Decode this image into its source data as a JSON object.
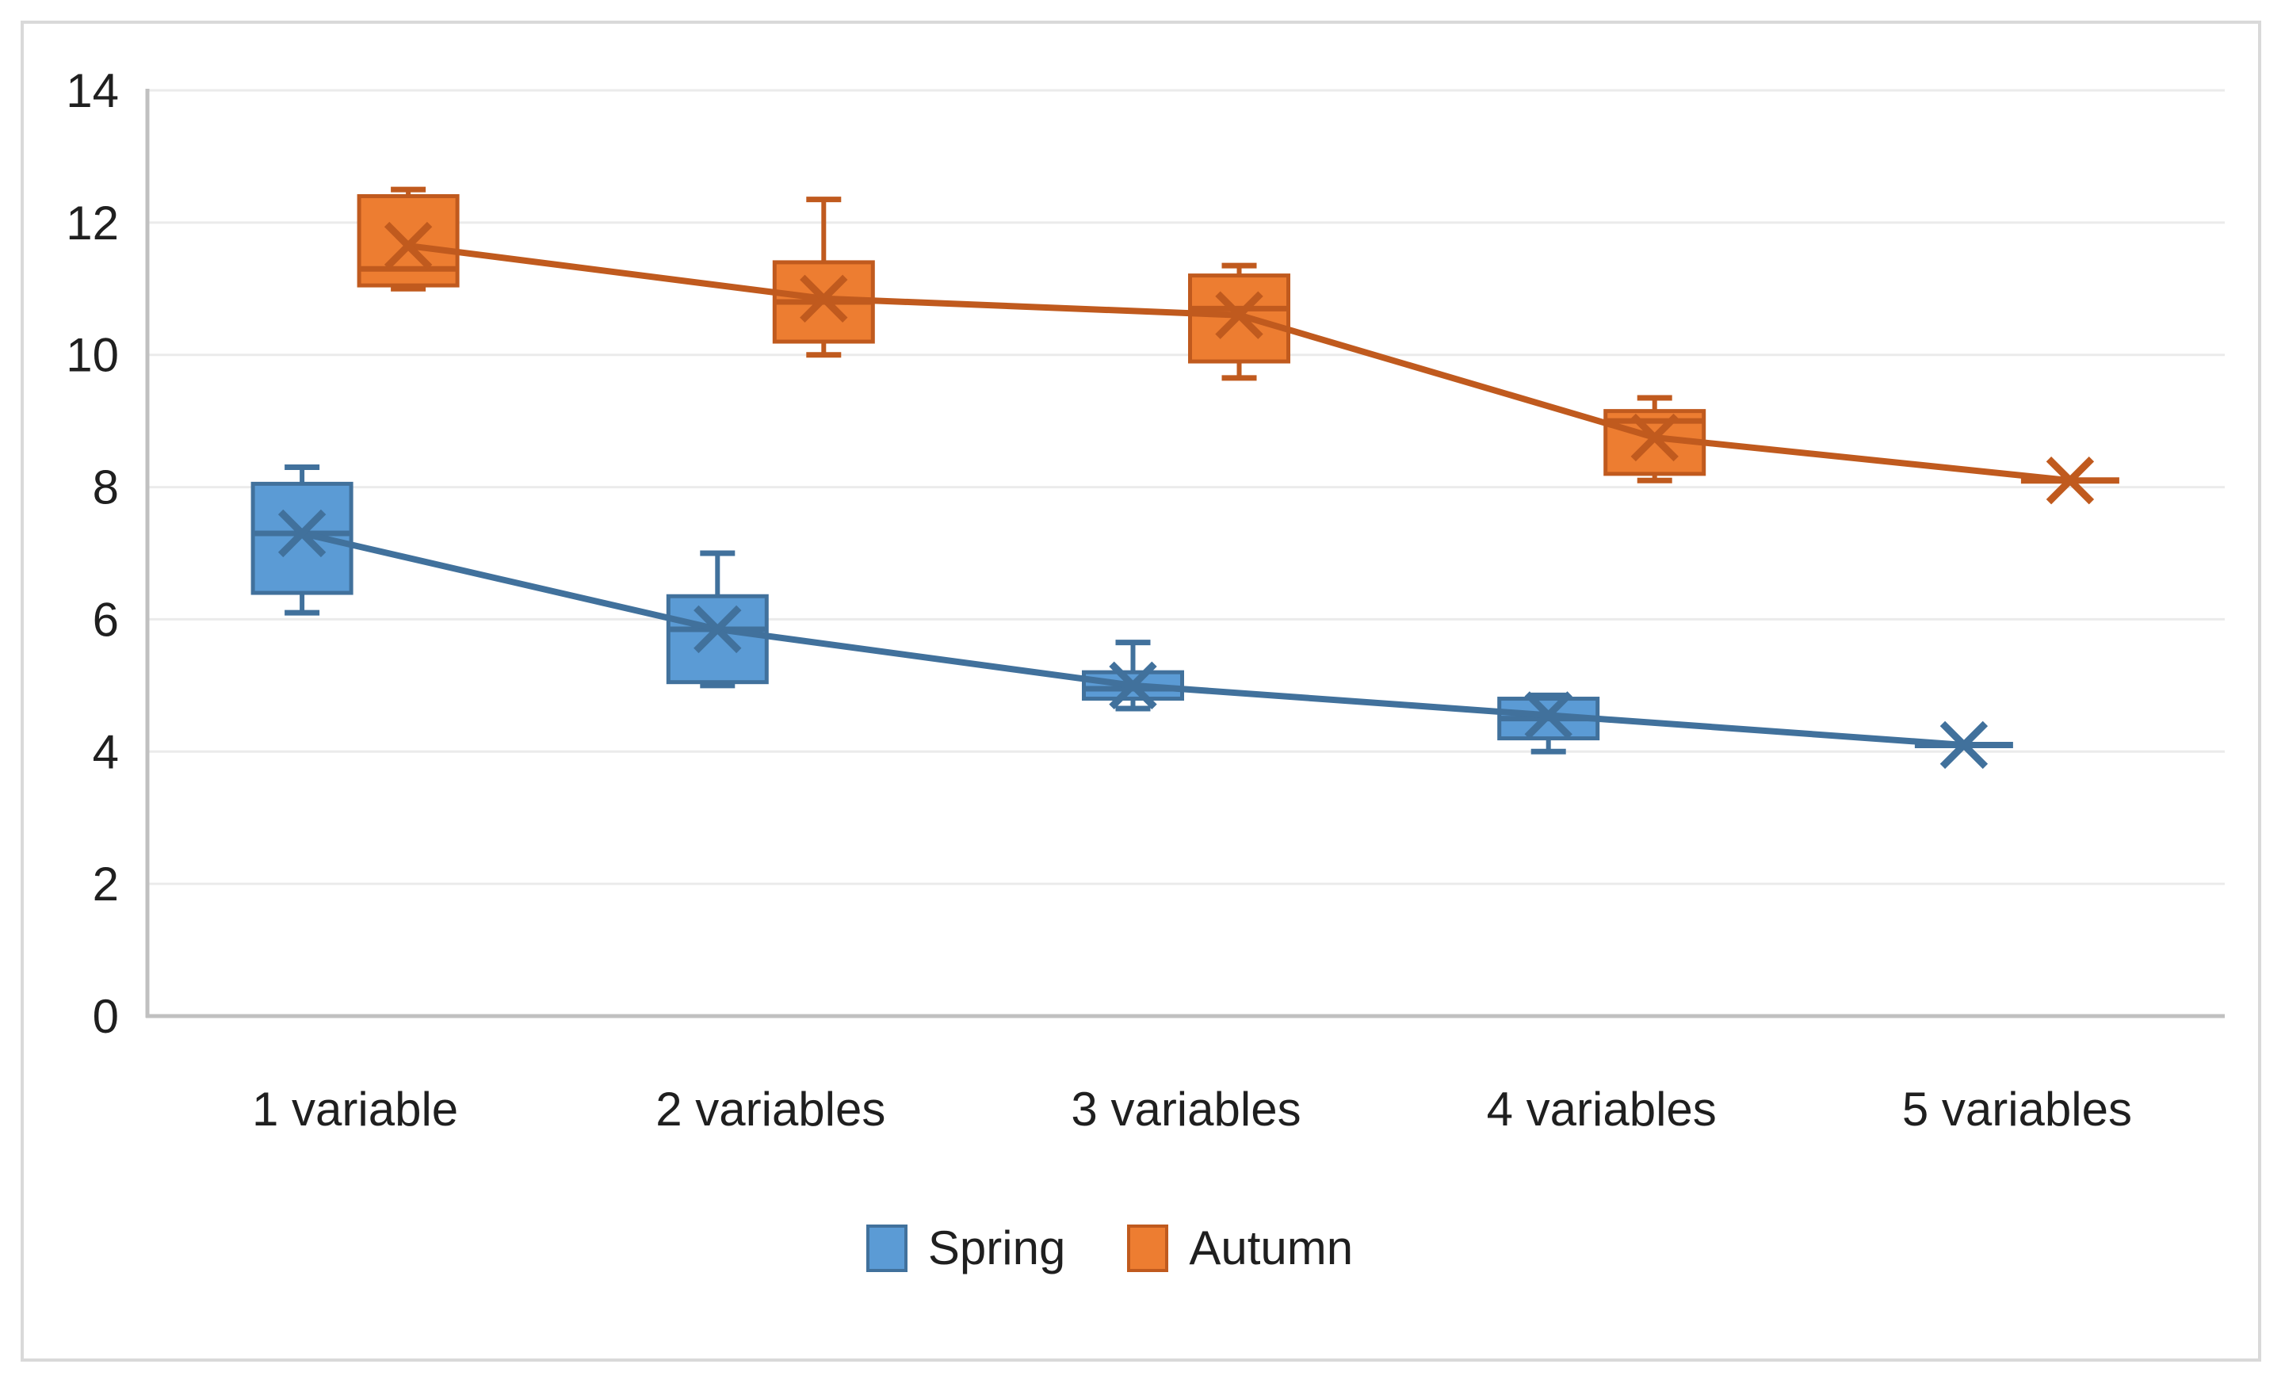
{
  "window": {
    "background": "#FFFFFF",
    "frame_border_color": "#D9D9D9"
  },
  "chart_data": {
    "type": "boxplot",
    "title": "",
    "categories": [
      "1 variable",
      "2 variables",
      "3 variables",
      "4 variables",
      "5 variables"
    ],
    "y_axis": {
      "min": 0,
      "max": 14,
      "step": 2,
      "ticks": [
        "0",
        "2",
        "4",
        "6",
        "8",
        "10",
        "12",
        "14"
      ]
    },
    "grid": true,
    "legend_position": "bottom-center",
    "colors": {
      "grid": "#EBEBEB",
      "axis": "#C0C0C0",
      "text": "#1F1F1F"
    },
    "series": [
      {
        "name": "Spring",
        "fill": "#5B9BD5",
        "stroke": "#41719C",
        "boxes": [
          {
            "category": "1 variable",
            "min": 6.1,
            "q1": 6.4,
            "median": 7.3,
            "q3": 8.05,
            "max": 8.3,
            "mean": 7.3
          },
          {
            "category": "2 variables",
            "min": 5.0,
            "q1": 5.05,
            "median": 5.85,
            "q3": 6.35,
            "max": 7.0,
            "mean": 5.85
          },
          {
            "category": "3 variables",
            "min": 4.65,
            "q1": 4.8,
            "median": 4.95,
            "q3": 5.2,
            "max": 5.65,
            "mean": 5.0
          },
          {
            "category": "4 variables",
            "min": 4.0,
            "q1": 4.2,
            "median": 4.5,
            "q3": 4.8,
            "max": 4.85,
            "mean": 4.55
          },
          {
            "category": "5 variables",
            "min": 4.1,
            "q1": 4.1,
            "median": 4.1,
            "q3": 4.1,
            "max": 4.1,
            "mean": 4.1
          }
        ]
      },
      {
        "name": "Autumn",
        "fill": "#ED7D31",
        "stroke": "#C05A1E",
        "boxes": [
          {
            "category": "1 variable",
            "min": 11.0,
            "q1": 11.05,
            "median": 11.3,
            "q3": 12.4,
            "max": 12.5,
            "mean": 11.65
          },
          {
            "category": "2 variables",
            "min": 10.0,
            "q1": 10.2,
            "median": 10.8,
            "q3": 11.4,
            "max": 12.35,
            "mean": 10.85
          },
          {
            "category": "3 variables",
            "min": 9.65,
            "q1": 9.9,
            "median": 10.7,
            "q3": 11.2,
            "max": 11.35,
            "mean": 10.6
          },
          {
            "category": "4 variables",
            "min": 8.1,
            "q1": 8.2,
            "median": 9.0,
            "q3": 9.15,
            "max": 9.35,
            "mean": 8.75
          },
          {
            "category": "5 variables",
            "min": 8.1,
            "q1": 8.1,
            "median": 8.1,
            "q3": 8.1,
            "max": 8.1,
            "mean": 8.1
          }
        ]
      }
    ]
  }
}
